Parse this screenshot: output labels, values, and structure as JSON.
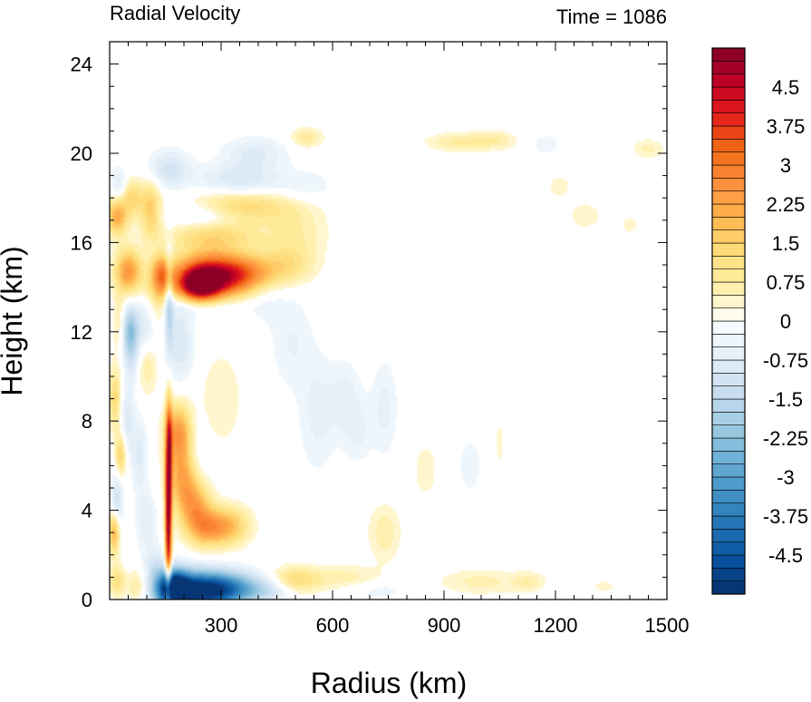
{
  "chart_data": {
    "type": "heatmap",
    "title_left": "Radial Velocity",
    "title_right": "Time = 1086",
    "xlabel": "Radius (km)",
    "ylabel": "Height (km)",
    "xlim": [
      0,
      1500
    ],
    "ylim": [
      0,
      25
    ],
    "x_ticks": [
      300,
      600,
      900,
      1200,
      1500
    ],
    "y_ticks": [
      0,
      4,
      8,
      12,
      16,
      20,
      24
    ],
    "colorbar": {
      "min": -5.25,
      "max": 5.25,
      "step": 0.25,
      "tick_labels": [
        "4.5",
        "3.75",
        "3",
        "2.25",
        "1.5",
        "0.75",
        "0",
        "-0.75",
        "-1.5",
        "-2.25",
        "-3",
        "-3.75",
        "-4.5"
      ],
      "tick_values": [
        4.5,
        3.75,
        3,
        2.25,
        1.5,
        0.75,
        0,
        -0.75,
        -1.5,
        -2.25,
        -3,
        -3.75,
        -4.5
      ],
      "colors": {
        "neg": [
          "#f7fbff",
          "#e1edf7",
          "#c6dcef",
          "#9ecae1",
          "#6baed6",
          "#4292c6",
          "#2171b5",
          "#08519c",
          "#08306b"
        ],
        "pos": [
          "#fffbea",
          "#ffeda0",
          "#fed976",
          "#feb24c",
          "#fd8d3c",
          "#f16913",
          "#e31a1c",
          "#bd0026",
          "#800026"
        ]
      }
    },
    "features": [
      {
        "x": 170,
        "y": 0.5,
        "sx": 30,
        "sy": 0.6,
        "v": -4.5
      },
      {
        "x": 240,
        "y": 0.4,
        "sx": 70,
        "sy": 0.6,
        "v": -5.2
      },
      {
        "x": 340,
        "y": 0.5,
        "sx": 60,
        "sy": 0.5,
        "v": -2.0
      },
      {
        "x": 430,
        "y": 0.4,
        "sx": 40,
        "sy": 0.4,
        "v": -0.8
      },
      {
        "x": 158,
        "y": 3.5,
        "sx": 6,
        "sy": 2.5,
        "v": 5.0
      },
      {
        "x": 160,
        "y": 7.0,
        "sx": 6,
        "sy": 1.5,
        "v": 2.0
      },
      {
        "x": 185,
        "y": 7.5,
        "sx": 25,
        "sy": 0.9,
        "v": 2.4
      },
      {
        "x": 200,
        "y": 5.5,
        "sx": 30,
        "sy": 1.0,
        "v": 2.2
      },
      {
        "x": 230,
        "y": 4.2,
        "sx": 30,
        "sy": 0.8,
        "v": 2.0
      },
      {
        "x": 260,
        "y": 3.2,
        "sx": 35,
        "sy": 0.6,
        "v": 1.8
      },
      {
        "x": 320,
        "y": 3.3,
        "sx": 40,
        "sy": 0.6,
        "v": 1.8
      },
      {
        "x": 230,
        "y": 6.0,
        "sx": 25,
        "sy": 1.2,
        "v": -0.7
      },
      {
        "x": 12,
        "y": 3.0,
        "sx": 10,
        "sy": 0.7,
        "v": 2.0
      },
      {
        "x": 20,
        "y": 4.5,
        "sx": 12,
        "sy": 0.8,
        "v": -1.2
      },
      {
        "x": 30,
        "y": 6.5,
        "sx": 10,
        "sy": 0.7,
        "v": 1.6
      },
      {
        "x": 15,
        "y": 9.0,
        "sx": 12,
        "sy": 1.0,
        "v": 1.4
      },
      {
        "x": 45,
        "y": 8.0,
        "sx": 15,
        "sy": 1.0,
        "v": -0.9
      },
      {
        "x": 60,
        "y": 10.5,
        "sx": 15,
        "sy": 0.8,
        "v": -0.7
      },
      {
        "x": 100,
        "y": 10.5,
        "sx": 20,
        "sy": 0.9,
        "v": 0.8
      },
      {
        "x": 25,
        "y": 12.5,
        "sx": 12,
        "sy": 0.9,
        "v": 0.7
      },
      {
        "x": 55,
        "y": 12.0,
        "sx": 15,
        "sy": 0.8,
        "v": -2.2
      },
      {
        "x": 95,
        "y": 12.2,
        "sx": 20,
        "sy": 0.9,
        "v": -0.9
      },
      {
        "x": 130,
        "y": 13.5,
        "sx": 25,
        "sy": 0.8,
        "v": 1.0
      },
      {
        "x": 80,
        "y": 6.5,
        "sx": 15,
        "sy": 1.2,
        "v": -0.8
      },
      {
        "x": 100,
        "y": 3.5,
        "sx": 20,
        "sy": 1.0,
        "v": -0.7
      },
      {
        "x": 20,
        "y": 0.8,
        "sx": 15,
        "sy": 0.5,
        "v": 1.2
      },
      {
        "x": 75,
        "y": 0.6,
        "sx": 20,
        "sy": 0.5,
        "v": 1.0
      },
      {
        "x": 120,
        "y": 1.5,
        "sx": 20,
        "sy": 0.6,
        "v": -0.8
      },
      {
        "x": 50,
        "y": 14.7,
        "sx": 25,
        "sy": 0.7,
        "v": 2.5
      },
      {
        "x": 140,
        "y": 14.6,
        "sx": 20,
        "sy": 0.6,
        "v": 2.2
      },
      {
        "x": 160,
        "y": 13.5,
        "sx": 8,
        "sy": 1.5,
        "v": -1.8
      },
      {
        "x": 190,
        "y": 11.5,
        "sx": 25,
        "sy": 1.2,
        "v": -1.0
      },
      {
        "x": 270,
        "y": 14.5,
        "sx": 70,
        "sy": 0.7,
        "v": 4.6
      },
      {
        "x": 240,
        "y": 14.0,
        "sx": 40,
        "sy": 0.5,
        "v": 3.5
      },
      {
        "x": 380,
        "y": 14.6,
        "sx": 60,
        "sy": 0.6,
        "v": 2.0
      },
      {
        "x": 480,
        "y": 15.0,
        "sx": 50,
        "sy": 0.6,
        "v": 0.9
      },
      {
        "x": 250,
        "y": 13.2,
        "sx": 80,
        "sy": 0.4,
        "v": -0.9
      },
      {
        "x": 20,
        "y": 17.2,
        "sx": 20,
        "sy": 0.6,
        "v": 2.2
      },
      {
        "x": 60,
        "y": 18.0,
        "sx": 20,
        "sy": 0.6,
        "v": 1.3
      },
      {
        "x": 110,
        "y": 17.5,
        "sx": 20,
        "sy": 0.9,
        "v": 1.6
      },
      {
        "x": 25,
        "y": 18.5,
        "sx": 15,
        "sy": 0.6,
        "v": -0.9
      },
      {
        "x": 160,
        "y": 19.3,
        "sx": 40,
        "sy": 0.6,
        "v": -1.1
      },
      {
        "x": 280,
        "y": 16.3,
        "sx": 90,
        "sy": 0.5,
        "v": 1.3
      },
      {
        "x": 350,
        "y": 17.6,
        "sx": 90,
        "sy": 0.5,
        "v": 1.5
      },
      {
        "x": 260,
        "y": 17.2,
        "sx": 70,
        "sy": 0.4,
        "v": -0.9
      },
      {
        "x": 350,
        "y": 18.8,
        "sx": 80,
        "sy": 0.5,
        "v": -1.0
      },
      {
        "x": 390,
        "y": 20.0,
        "sx": 60,
        "sy": 0.5,
        "v": -0.8
      },
      {
        "x": 500,
        "y": 16.5,
        "sx": 60,
        "sy": 1.0,
        "v": 0.7
      },
      {
        "x": 530,
        "y": 20.7,
        "sx": 30,
        "sy": 0.3,
        "v": 0.9
      },
      {
        "x": 940,
        "y": 20.5,
        "sx": 60,
        "sy": 0.3,
        "v": 0.8
      },
      {
        "x": 1040,
        "y": 20.6,
        "sx": 40,
        "sy": 0.3,
        "v": 0.6
      },
      {
        "x": 1175,
        "y": 20.4,
        "sx": 25,
        "sy": 0.3,
        "v": -0.5
      },
      {
        "x": 1450,
        "y": 20.2,
        "sx": 30,
        "sy": 0.3,
        "v": 0.6
      },
      {
        "x": 1280,
        "y": 17.2,
        "sx": 30,
        "sy": 0.4,
        "v": 0.5
      },
      {
        "x": 1210,
        "y": 18.5,
        "sx": 25,
        "sy": 0.4,
        "v": 0.4
      },
      {
        "x": 1400,
        "y": 16.8,
        "sx": 20,
        "sy": 0.3,
        "v": 0.4
      },
      {
        "x": 530,
        "y": 18.5,
        "sx": 50,
        "sy": 0.5,
        "v": -0.5
      },
      {
        "x": 560,
        "y": 8.3,
        "sx": 35,
        "sy": 1.8,
        "v": -0.6
      },
      {
        "x": 635,
        "y": 9.0,
        "sx": 30,
        "sy": 1.2,
        "v": -0.6
      },
      {
        "x": 670,
        "y": 7.5,
        "sx": 25,
        "sy": 1.0,
        "v": -0.5
      },
      {
        "x": 740,
        "y": 8.6,
        "sx": 25,
        "sy": 1.5,
        "v": -0.6
      },
      {
        "x": 740,
        "y": 3.0,
        "sx": 30,
        "sy": 0.9,
        "v": 0.7
      },
      {
        "x": 850,
        "y": 5.8,
        "sx": 25,
        "sy": 1.0,
        "v": 0.4
      },
      {
        "x": 970,
        "y": 6.0,
        "sx": 25,
        "sy": 1.0,
        "v": -0.4
      },
      {
        "x": 1050,
        "y": 7.0,
        "sx": 15,
        "sy": 1.2,
        "v": 0.3
      },
      {
        "x": 500,
        "y": 0.9,
        "sx": 50,
        "sy": 0.4,
        "v": 1.3
      },
      {
        "x": 640,
        "y": 1.0,
        "sx": 60,
        "sy": 0.4,
        "v": 0.6
      },
      {
        "x": 1000,
        "y": 0.8,
        "sx": 80,
        "sy": 0.4,
        "v": 0.6
      },
      {
        "x": 1130,
        "y": 0.8,
        "sx": 30,
        "sy": 0.3,
        "v": 0.6
      },
      {
        "x": 1330,
        "y": 0.6,
        "sx": 40,
        "sy": 0.3,
        "v": 0.3
      },
      {
        "x": 720,
        "y": 0.4,
        "sx": 60,
        "sy": 0.3,
        "v": -0.4
      },
      {
        "x": 300,
        "y": 9.0,
        "sx": 40,
        "sy": 1.5,
        "v": 0.5
      },
      {
        "x": 490,
        "y": 11.5,
        "sx": 40,
        "sy": 1.5,
        "v": -0.5
      },
      {
        "x": 420,
        "y": 14.0,
        "sx": 40,
        "sy": 1.0,
        "v": -0.5
      }
    ]
  }
}
